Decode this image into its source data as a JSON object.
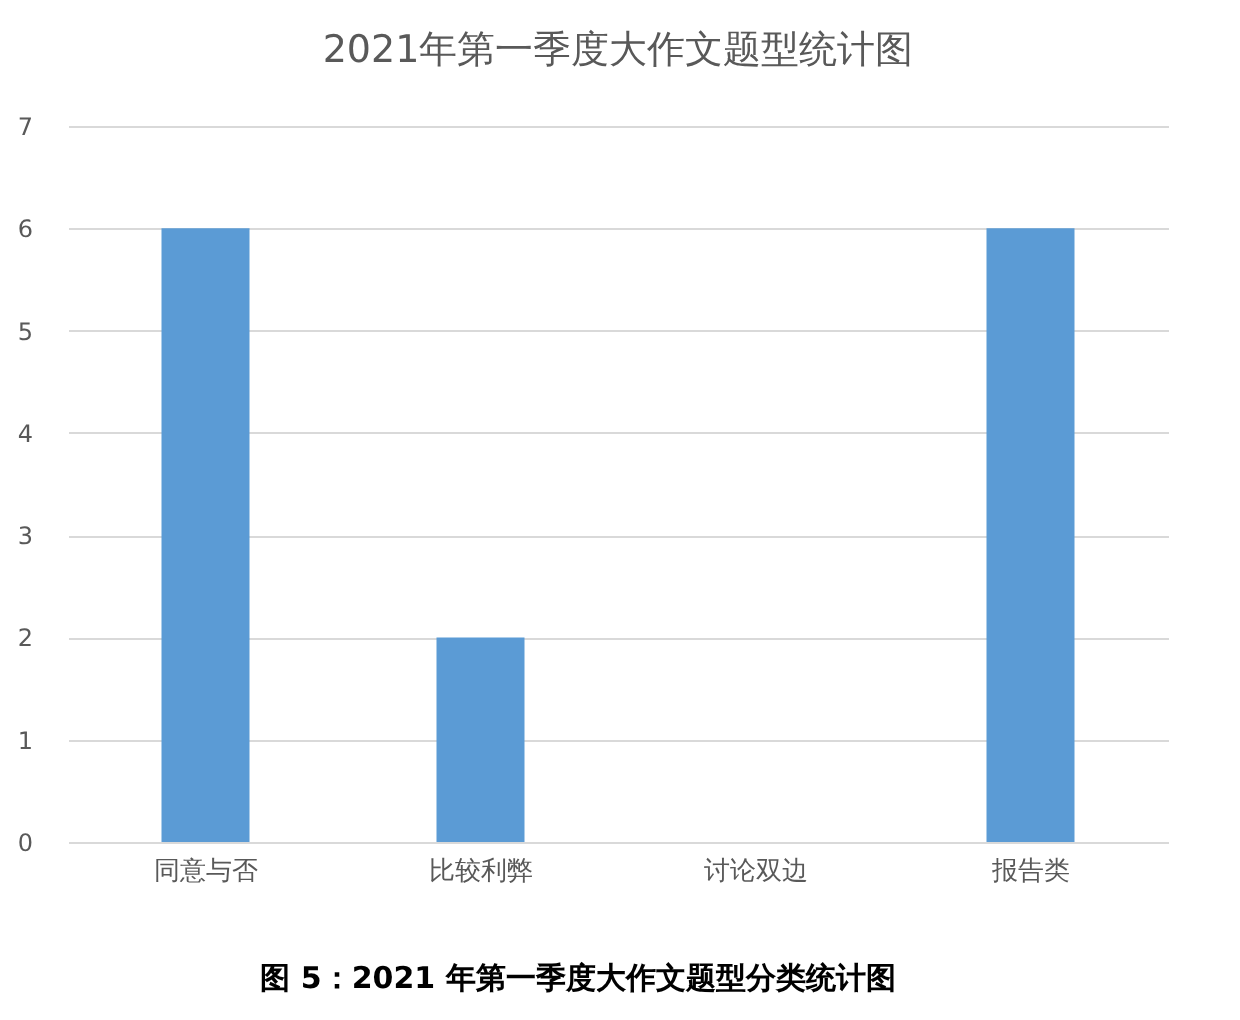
{
  "chart_data": {
    "type": "bar",
    "title": "2021年第一季度大作文题型统计图",
    "categories": [
      "同意与否",
      "比较利弊",
      "讨论双边",
      "报告类"
    ],
    "values": [
      6,
      2,
      0,
      6
    ],
    "color": "#5b9bd5",
    "ylim": [
      0,
      7
    ],
    "yticks": [
      0,
      1,
      2,
      3,
      4,
      5,
      6,
      7
    ],
    "grid": "y",
    "annotations": [
      "图 5：2021 年第一季度大作文题型分类统计图"
    ]
  }
}
